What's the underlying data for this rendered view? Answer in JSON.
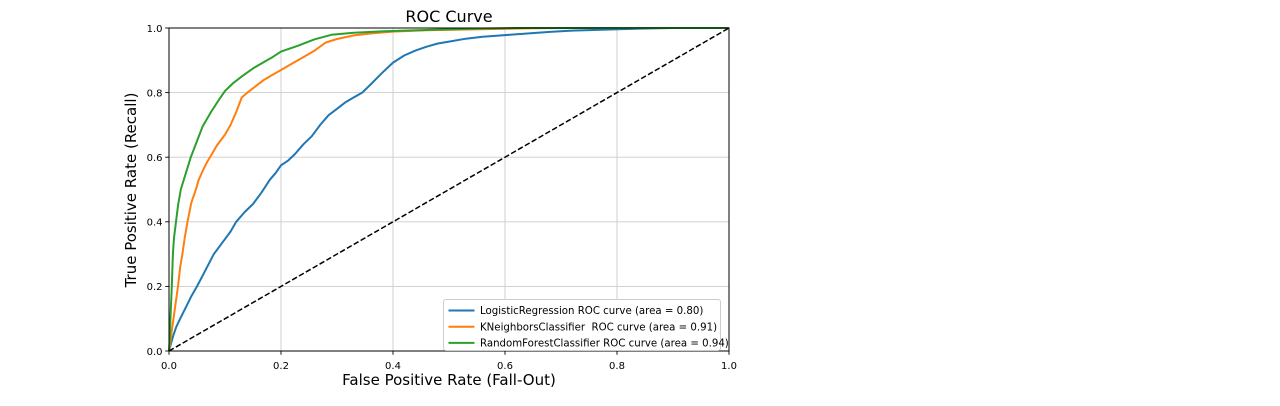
{
  "chart_data": {
    "type": "line",
    "title": "ROC Curve",
    "xlabel": "False Positive Rate (Fall-Out)",
    "ylabel": "True Positive Rate (Recall)",
    "xlim": [
      0.0,
      1.0
    ],
    "ylim": [
      0.0,
      1.0
    ],
    "x_ticks": [
      "0.0",
      "0.2",
      "0.4",
      "0.6",
      "0.8",
      "1.0"
    ],
    "y_ticks": [
      "0.0",
      "0.2",
      "0.4",
      "0.6",
      "0.8",
      "1.0"
    ],
    "grid": true,
    "colors": {
      "background": "#ffffff",
      "grid": "#cccccc",
      "spine": "#000000",
      "text": "#000000"
    },
    "legend": {
      "position": "lower right",
      "border_color": "#cccccc",
      "entries": [
        {
          "label": "LogisticRegression ROC curve (area = 0.80)",
          "color": "#1f77b4"
        },
        {
          "label": "KNeighborsClassifier  ROC curve (area = 0.91)",
          "color": "#ff7f0e"
        },
        {
          "label": "RandomForestClassifier ROC curve (area = 0.94)",
          "color": "#2ca02c"
        }
      ]
    },
    "series": [
      {
        "name": "LogisticRegression",
        "auc": "0.80",
        "color": "#1f77b4",
        "line_style": "solid",
        "points": [
          [
            0,
            0
          ],
          [
            0.004,
            0.025
          ],
          [
            0.008,
            0.05
          ],
          [
            0.013,
            0.075
          ],
          [
            0.02,
            0.1
          ],
          [
            0.03,
            0.135
          ],
          [
            0.04,
            0.17
          ],
          [
            0.05,
            0.2
          ],
          [
            0.065,
            0.25
          ],
          [
            0.08,
            0.3
          ],
          [
            0.095,
            0.335
          ],
          [
            0.11,
            0.37
          ],
          [
            0.12,
            0.4
          ],
          [
            0.135,
            0.43
          ],
          [
            0.15,
            0.455
          ],
          [
            0.165,
            0.49
          ],
          [
            0.18,
            0.53
          ],
          [
            0.19,
            0.55
          ],
          [
            0.2,
            0.575
          ],
          [
            0.213,
            0.59
          ],
          [
            0.225,
            0.61
          ],
          [
            0.24,
            0.64
          ],
          [
            0.255,
            0.665
          ],
          [
            0.27,
            0.7
          ],
          [
            0.285,
            0.73
          ],
          [
            0.3,
            0.75
          ],
          [
            0.315,
            0.77
          ],
          [
            0.33,
            0.785
          ],
          [
            0.345,
            0.8
          ],
          [
            0.36,
            0.825
          ],
          [
            0.38,
            0.86
          ],
          [
            0.4,
            0.893
          ],
          [
            0.42,
            0.915
          ],
          [
            0.44,
            0.93
          ],
          [
            0.46,
            0.942
          ],
          [
            0.48,
            0.952
          ],
          [
            0.5,
            0.958
          ],
          [
            0.53,
            0.967
          ],
          [
            0.56,
            0.973
          ],
          [
            0.6,
            0.978
          ],
          [
            0.64,
            0.983
          ],
          [
            0.68,
            0.988
          ],
          [
            0.72,
            0.992
          ],
          [
            0.78,
            0.995
          ],
          [
            0.84,
            0.998
          ],
          [
            0.9,
            1.0
          ],
          [
            1,
            1
          ]
        ]
      },
      {
        "name": "KNeighborsClassifier",
        "auc": "0.91",
        "color": "#ff7f0e",
        "line_style": "solid",
        "points": [
          [
            0,
            0
          ],
          [
            0.002,
            0.02
          ],
          [
            0.004,
            0.05
          ],
          [
            0.008,
            0.1
          ],
          [
            0.012,
            0.15
          ],
          [
            0.016,
            0.2
          ],
          [
            0.02,
            0.26
          ],
          [
            0.024,
            0.3
          ],
          [
            0.028,
            0.35
          ],
          [
            0.033,
            0.4
          ],
          [
            0.04,
            0.46
          ],
          [
            0.048,
            0.5
          ],
          [
            0.053,
            0.53
          ],
          [
            0.06,
            0.557
          ],
          [
            0.068,
            0.585
          ],
          [
            0.075,
            0.605
          ],
          [
            0.085,
            0.635
          ],
          [
            0.1,
            0.67
          ],
          [
            0.11,
            0.7
          ],
          [
            0.12,
            0.74
          ],
          [
            0.13,
            0.785
          ],
          [
            0.14,
            0.8
          ],
          [
            0.155,
            0.82
          ],
          [
            0.17,
            0.84
          ],
          [
            0.185,
            0.855
          ],
          [
            0.2,
            0.87
          ],
          [
            0.22,
            0.89
          ],
          [
            0.24,
            0.91
          ],
          [
            0.26,
            0.93
          ],
          [
            0.28,
            0.955
          ],
          [
            0.3,
            0.966
          ],
          [
            0.33,
            0.977
          ],
          [
            0.36,
            0.983
          ],
          [
            0.4,
            0.989
          ],
          [
            0.46,
            0.993
          ],
          [
            0.52,
            0.995
          ],
          [
            0.58,
            0.997
          ],
          [
            0.65,
            0.999
          ],
          [
            0.72,
            1.0
          ],
          [
            1,
            1
          ]
        ]
      },
      {
        "name": "RandomForestClassifier",
        "auc": "0.94",
        "color": "#2ca02c",
        "line_style": "solid",
        "points": [
          [
            0,
            0
          ],
          [
            0.001,
            0.03
          ],
          [
            0.002,
            0.07
          ],
          [
            0.003,
            0.12
          ],
          [
            0.005,
            0.2
          ],
          [
            0.007,
            0.3
          ],
          [
            0.009,
            0.35
          ],
          [
            0.0125,
            0.4
          ],
          [
            0.016,
            0.45
          ],
          [
            0.021,
            0.5
          ],
          [
            0.03,
            0.55
          ],
          [
            0.039,
            0.6
          ],
          [
            0.05,
            0.65
          ],
          [
            0.06,
            0.695
          ],
          [
            0.075,
            0.74
          ],
          [
            0.09,
            0.78
          ],
          [
            0.1,
            0.805
          ],
          [
            0.115,
            0.83
          ],
          [
            0.13,
            0.85
          ],
          [
            0.15,
            0.875
          ],
          [
            0.17,
            0.895
          ],
          [
            0.185,
            0.91
          ],
          [
            0.2,
            0.927
          ],
          [
            0.23,
            0.945
          ],
          [
            0.26,
            0.965
          ],
          [
            0.29,
            0.979
          ],
          [
            0.33,
            0.985
          ],
          [
            0.37,
            0.989
          ],
          [
            0.42,
            0.992
          ],
          [
            0.48,
            0.995
          ],
          [
            0.55,
            0.998
          ],
          [
            0.62,
            1.0
          ],
          [
            1,
            1
          ]
        ]
      },
      {
        "name": "chance",
        "color": "#000000",
        "line_style": "dashed",
        "points": [
          [
            0,
            0
          ],
          [
            1,
            1
          ]
        ]
      }
    ]
  }
}
